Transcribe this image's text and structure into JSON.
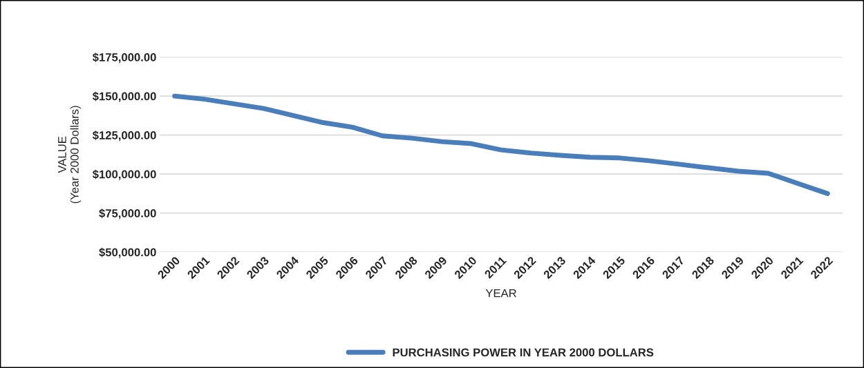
{
  "chart_data": {
    "type": "line",
    "xlabel": "YEAR",
    "ylabel": "VALUE\n(Year 2000 Dollars)",
    "categories": [
      "2000",
      "2001",
      "2002",
      "2003",
      "2004",
      "2005",
      "2006",
      "2007",
      "2008",
      "2009",
      "2010",
      "2011",
      "2012",
      "2013",
      "2014",
      "2015",
      "2016",
      "2017",
      "2018",
      "2019",
      "2020",
      "2021",
      "2022"
    ],
    "series": [
      {
        "name": "PURCHASING POWER IN YEAR 2000 DOLLARS",
        "color": "#4a7ebb",
        "values": [
          150000,
          148000,
          145000,
          142000,
          137500,
          133000,
          130000,
          124500,
          123000,
          120800,
          119500,
          115500,
          113500,
          112000,
          110800,
          110300,
          108500,
          106300,
          104000,
          101800,
          100500,
          94000,
          87500
        ]
      }
    ],
    "ylim": [
      50000,
      175000
    ],
    "yticks": [
      {
        "value": 50000,
        "label": "$50,000.00"
      },
      {
        "value": 75000,
        "label": "$75,000.00"
      },
      {
        "value": 100000,
        "label": "$100,000.00"
      },
      {
        "value": 125000,
        "label": "$125,000.00"
      },
      {
        "value": 150000,
        "label": "$150,000.00"
      },
      {
        "value": 175000,
        "label": "$175,000.00"
      }
    ],
    "grid": "y",
    "legend": "bottom",
    "marker": "none",
    "line_style": "solid"
  }
}
